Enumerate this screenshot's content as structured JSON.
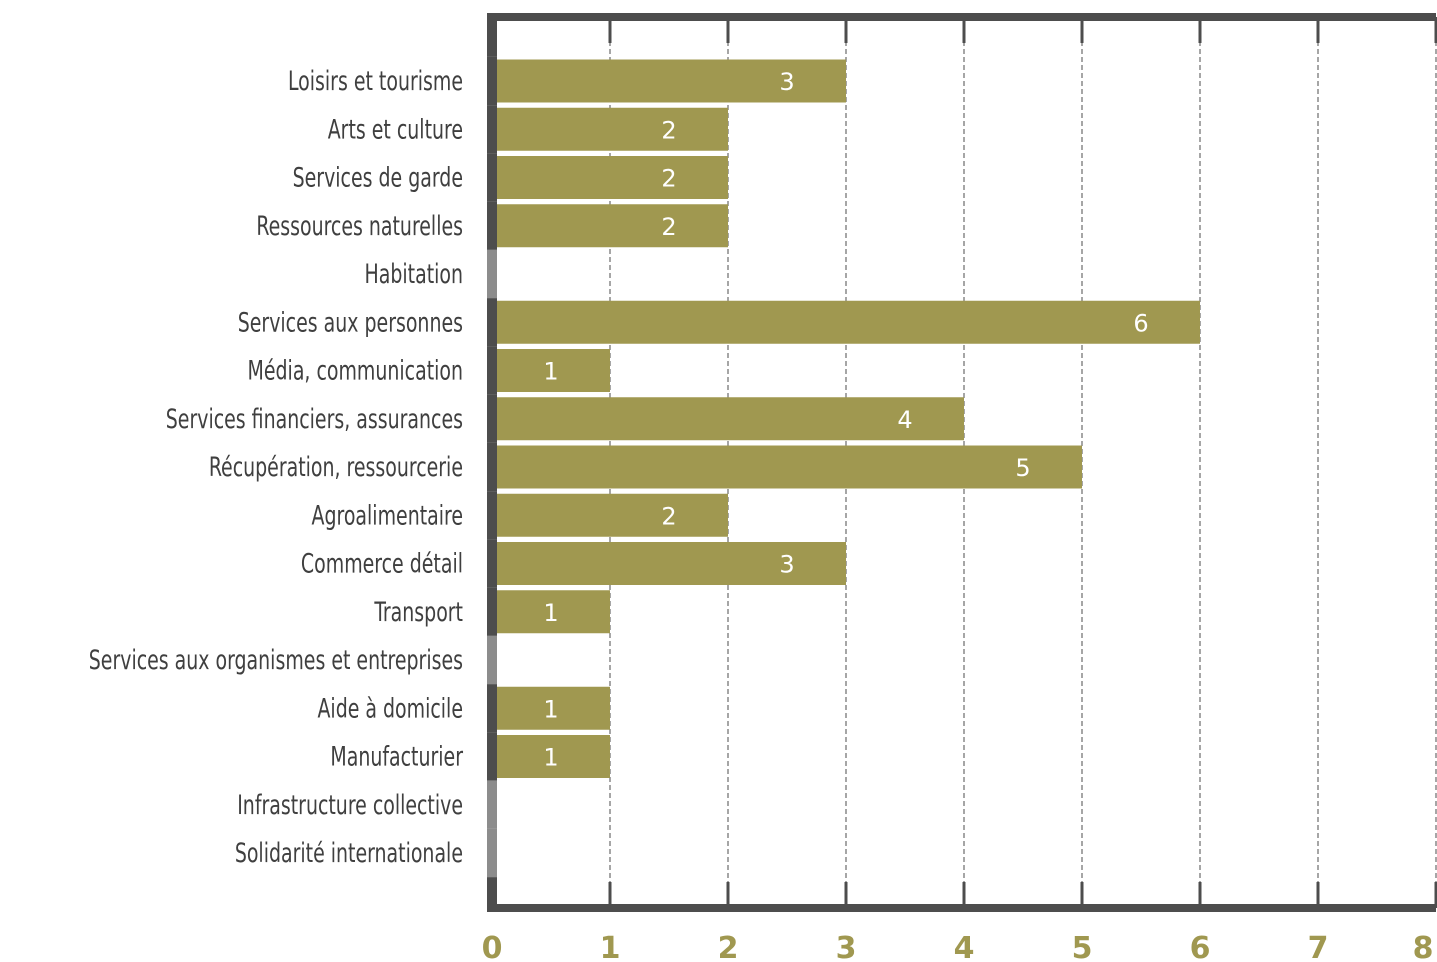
{
  "chart_data": {
    "type": "bar",
    "orientation": "horizontal",
    "categories": [
      "Loisirs et tourisme",
      "Arts et culture",
      "Services de garde",
      "Ressources naturelles",
      "Habitation",
      "Services aux personnes",
      "Média, communication",
      "Services financiers, assurances",
      "Récupération, ressourcerie",
      "Agroalimentaire",
      "Commerce détail",
      "Transport",
      "Services aux organismes et entreprises",
      "Aide à domicile",
      "Manufacturier",
      "Infrastructure collective",
      "Solidarité internationale"
    ],
    "values": [
      3,
      2,
      2,
      2,
      0,
      6,
      1,
      4,
      5,
      2,
      3,
      1,
      0,
      1,
      1,
      0,
      0
    ],
    "data_labels": [
      "3",
      "2",
      "2",
      "2",
      "",
      "6",
      "1",
      "4",
      "5",
      "2",
      "3",
      "1",
      "",
      "1",
      "1",
      "",
      ""
    ],
    "xlim": [
      0,
      8
    ],
    "x_ticks": [
      0,
      1,
      2,
      3,
      4,
      5,
      6,
      7,
      8
    ],
    "x_tick_labels": [
      "0",
      "1",
      "2",
      "3",
      "4",
      "5",
      "6",
      "7",
      "8"
    ],
    "grid": "vertical dashed",
    "title": "",
    "xlabel": "",
    "ylabel": "",
    "colors": {
      "bar": "#a09850",
      "axis": "#4d4d4d",
      "empty_category_marker": "#8c8c8c",
      "category_text": "#3f3f3f",
      "tick_text": "#a09850",
      "bar_label_text": "#ffffff",
      "grid": "#4d4d4d"
    }
  }
}
